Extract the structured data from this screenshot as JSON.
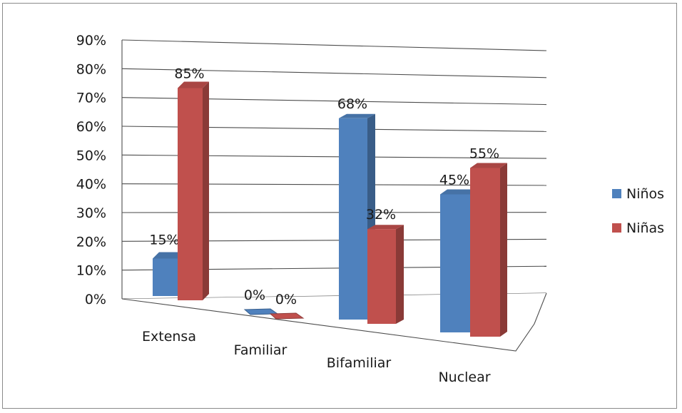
{
  "chart_data": {
    "type": "bar",
    "categories": [
      "Extensa",
      "Familiar",
      "Bifamiliar",
      "Nuclear"
    ],
    "series": [
      {
        "name": "Niños",
        "values": [
          15,
          0,
          68,
          45
        ],
        "labels": [
          "15%",
          "0%",
          "68%",
          "45%"
        ]
      },
      {
        "name": "Niñas",
        "values": [
          85,
          0,
          32,
          55
        ],
        "labels": [
          "85%",
          "0%",
          "32%",
          "55%"
        ]
      }
    ],
    "yticks": [
      "0%",
      "10%",
      "20%",
      "30%",
      "40%",
      "50%",
      "60%",
      "70%",
      "80%",
      "90%"
    ],
    "ylim": [
      0,
      90
    ],
    "grid": true,
    "legend_position": "right",
    "style": "3d-perspective"
  },
  "colors": {
    "ninos": "#4f81bd",
    "ninas": "#c0504d",
    "grid": "#4d4d4d",
    "frame": "#8a8a8a"
  }
}
